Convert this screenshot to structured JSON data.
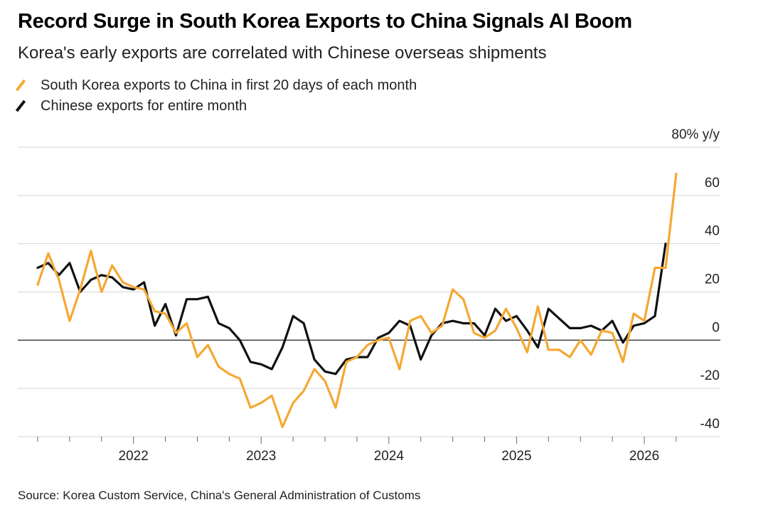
{
  "title": "Record Surge in South Korea Exports to China Signals AI Boom",
  "subtitle": "Korea's early exports are correlated with Chinese overseas shipments",
  "source": "Source: Korea Custom Service, China's General Administration of Customs",
  "colors": {
    "korea": "#f5a833",
    "china": "#111111",
    "grid": "#d4d4d4",
    "zero": "#333333"
  },
  "chart_data": {
    "type": "line",
    "title": "Record Surge in South Korea Exports to China Signals AI Boom",
    "subtitle": "Korea's early exports are correlated with Chinese overseas shipments",
    "ylabel": "80% y/y",
    "xlabel": "",
    "y_unit": "% y/y",
    "ylim": [
      -40,
      80
    ],
    "yticks": [
      80,
      60,
      40,
      20,
      0,
      -20,
      -40
    ],
    "ytick_labels": [
      "80% y/y",
      "60",
      "40",
      "20",
      "0",
      "-20",
      "-40"
    ],
    "xlim": [
      "2021-03",
      "2026-05"
    ],
    "xticks": [
      "2022",
      "2023",
      "2024",
      "2025",
      "2026"
    ],
    "legend": [
      "South Korea exports to China in first 20 days of each month",
      "Chinese exports for entire month"
    ],
    "legend_position": "top-left",
    "series": [
      {
        "name": "South Korea exports to China in first 20 days of each month",
        "color": "#f5a833",
        "start": "2021-04",
        "values": [
          23,
          36,
          25,
          8,
          21,
          37,
          20,
          31,
          24,
          22,
          21,
          12,
          11,
          3,
          7,
          -7,
          -2,
          -11,
          -14,
          -16,
          -28,
          -26,
          -23,
          -36,
          -26,
          -21,
          -12,
          -17,
          -28,
          -9,
          -7,
          -2,
          0,
          1,
          -12,
          8,
          10,
          3,
          6,
          21,
          17,
          3,
          1,
          4,
          13,
          5,
          -5,
          14,
          -4,
          -4,
          -7,
          0,
          -6,
          4,
          3,
          -9,
          11,
          8,
          30,
          30,
          69
        ]
      },
      {
        "name": "Chinese exports for entire month",
        "color": "#111111",
        "start": "2021-04",
        "values": [
          30,
          32,
          27,
          32,
          20,
          25,
          27,
          26,
          22,
          21,
          24,
          6,
          15,
          2,
          17,
          17,
          18,
          7,
          5,
          0,
          -9,
          -10,
          -12,
          -3,
          10,
          7,
          -8,
          -13,
          -14,
          -8,
          -7,
          -7,
          1,
          3,
          8,
          6,
          -8,
          2,
          7,
          8,
          7,
          7,
          2,
          13,
          8,
          10,
          4,
          -3,
          13,
          9,
          5,
          5,
          6,
          4,
          8,
          -1,
          6,
          7,
          10,
          40
        ]
      }
    ]
  }
}
